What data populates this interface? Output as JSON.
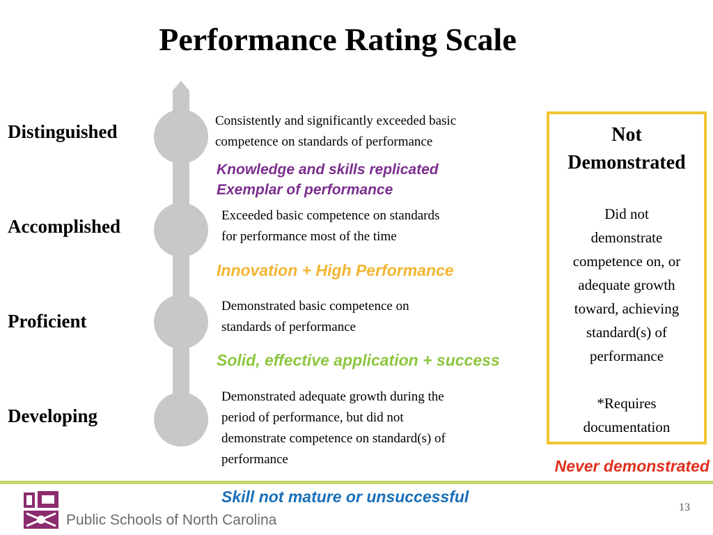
{
  "title": "Performance Rating Scale",
  "levels": [
    {
      "name": "Distinguished",
      "description_lines": [
        "Consistently and significantly exceeded basic",
        "competence on standards of performance"
      ]
    },
    {
      "name": "Accomplished",
      "description_lines": [
        "Exceeded basic competence on standards",
        "for performance most of the time"
      ]
    },
    {
      "name": "Proficient",
      "description_lines": [
        "Demonstrated basic competence on",
        "standards of performance"
      ]
    },
    {
      "name": "Developing",
      "description_lines": [
        "Demonstrated adequate growth during the",
        "period of performance, but did not",
        "demonstrate competence on standard(s) of",
        "performance"
      ]
    }
  ],
  "subtexts": [
    {
      "lines": [
        "Knowledge and skills replicated",
        "Exemplar of performance"
      ],
      "color": "#7b2e8e"
    },
    {
      "lines": [
        "Innovation + High Performance"
      ],
      "color": "#f2b531"
    },
    {
      "lines": [
        "Solid, effective application + success"
      ],
      "color": "#8dc63f"
    },
    {
      "lines": [
        "Skill not mature or unsuccessful"
      ],
      "color": "#1a6fb8"
    }
  ],
  "not_demonstrated": {
    "title_lines": [
      "Not",
      "Demonstrated"
    ],
    "body_lines": [
      "Did not",
      "demonstrate",
      "competence on, or",
      "adequate growth",
      "toward, achieving",
      "standard(s) of",
      "performance"
    ],
    "note_lines": [
      "*Requires",
      "documentation"
    ],
    "border_color": "#f2c431"
  },
  "never_demonstrated": {
    "label": "Never demonstrated",
    "color": "#e0301e"
  },
  "footer": {
    "org": "Public Schools of North Carolina",
    "page_number": "13",
    "line_color": "#c5d86d",
    "logo_color": "#8b2c6e",
    "org_color": "#6b6b6b"
  },
  "scale_color": "#c8c8c8"
}
